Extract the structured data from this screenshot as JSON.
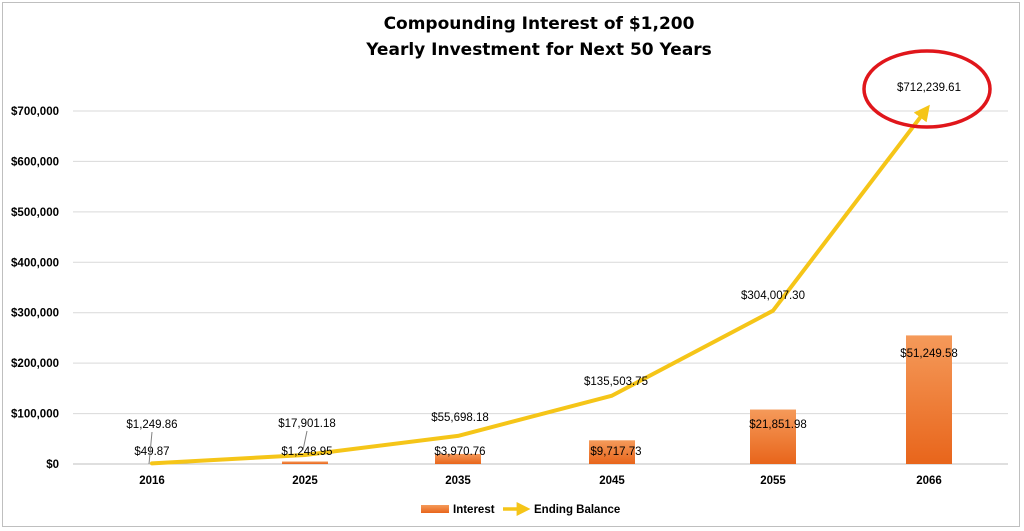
{
  "chart_data": {
    "type": "bar+line",
    "title_lines": [
      "Compounding Interest of $1,200",
      "Yearly Investment for Next 50 Years"
    ],
    "categories": [
      "2016",
      "2025",
      "2035",
      "2045",
      "2055",
      "2066"
    ],
    "series": [
      {
        "name": "Interest",
        "kind": "bar",
        "values": [
          49.87,
          1248.95,
          3970.76,
          9717.73,
          21851.98,
          51249.58
        ],
        "labels": [
          "$49.87",
          "$1,248.95",
          "$3,970.76",
          "$9,717.73",
          "$21,851.98",
          "$51,249.58"
        ],
        "color": "#f07a2a"
      },
      {
        "name": "Ending Balance",
        "kind": "line",
        "values": [
          1249.86,
          17901.18,
          55698.18,
          135503.75,
          304007.3,
          712239.61
        ],
        "labels": [
          "$1,249.86",
          "$17,901.18",
          "$55,698.18",
          "$135,503.75",
          "$304,007.30",
          "$712,239.61"
        ],
        "color": "#f5c518"
      }
    ],
    "bar_apparent_heights": [
      0,
      5000,
      20000,
      47000,
      108000,
      255000
    ],
    "ylim": [
      0,
      700000
    ],
    "y_ticks": [
      "$0",
      "$100,000",
      "$200,000",
      "$300,000",
      "$400,000",
      "$500,000",
      "$600,000",
      "$700,000"
    ],
    "y_tick_values": [
      0,
      100000,
      200000,
      300000,
      400000,
      500000,
      600000,
      700000
    ],
    "grid": true,
    "legend_position": "bottom",
    "highlight": {
      "target": "Ending Balance last point",
      "color": "#e0161b",
      "shape": "ellipse"
    }
  }
}
